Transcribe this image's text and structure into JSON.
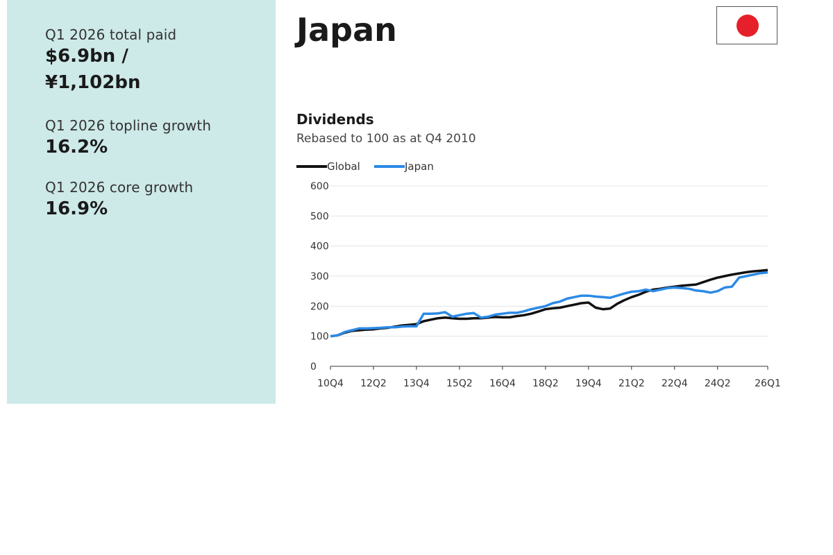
{
  "stats": [
    {
      "label": "Q1 2026 total paid",
      "value_line1": "$6.9bn /",
      "value_line2": "¥1,102bn"
    },
    {
      "label": "Q1 2026 topline growth",
      "value": "16.2%"
    },
    {
      "label": "Q1 2026 core growth",
      "value": "16.9%"
    }
  ],
  "country": "Japan",
  "flag_icon": "japan-flag-icon",
  "colors": {
    "panel": "#cde9e8",
    "global": "#111111",
    "japan": "#2b8ae6",
    "flag_red": "#e5202a"
  },
  "chart_data": {
    "type": "line",
    "title": "Dividends",
    "subtitle": "Rebased to 100 as at Q4 2010",
    "legend": [
      "Global",
      "Japan"
    ],
    "legend_position": "top-left",
    "ylim": [
      0,
      600
    ],
    "yticks": [
      0,
      100,
      200,
      300,
      400,
      500,
      600
    ],
    "xtick_labels": [
      "10Q4",
      "12Q2",
      "13Q4",
      "15Q2",
      "16Q4",
      "18Q2",
      "19Q4",
      "21Q2",
      "22Q4",
      "24Q2",
      "26Q1"
    ],
    "xtick_index": [
      0,
      6,
      12,
      18,
      24,
      30,
      36,
      42,
      48,
      54,
      61
    ],
    "grid": true,
    "x": [
      "10Q4",
      "11Q1",
      "11Q2",
      "11Q3",
      "11Q4",
      "12Q1",
      "12Q2",
      "12Q3",
      "12Q4",
      "13Q1",
      "13Q2",
      "13Q3",
      "13Q4",
      "14Q1",
      "14Q2",
      "14Q3",
      "14Q4",
      "15Q1",
      "15Q2",
      "15Q3",
      "15Q4",
      "16Q1",
      "16Q2",
      "16Q3",
      "16Q4",
      "17Q1",
      "17Q2",
      "17Q3",
      "17Q4",
      "18Q1",
      "18Q2",
      "18Q3",
      "18Q4",
      "19Q1",
      "19Q2",
      "19Q3",
      "19Q4",
      "20Q1",
      "20Q2",
      "20Q3",
      "20Q4",
      "21Q1",
      "21Q2",
      "21Q3",
      "21Q4",
      "22Q1",
      "22Q2",
      "22Q3",
      "22Q4",
      "23Q1",
      "23Q2",
      "23Q3",
      "23Q4",
      "24Q1",
      "24Q2",
      "24Q3",
      "24Q4",
      "25Q1",
      "25Q2",
      "25Q3",
      "25Q4",
      "26Q1"
    ],
    "series": [
      {
        "name": "Global",
        "values": [
          100,
          103,
          112,
          118,
          120,
          122,
          123,
          126,
          128,
          132,
          136,
          138,
          140,
          150,
          155,
          160,
          162,
          160,
          158,
          158,
          160,
          160,
          162,
          164,
          163,
          163,
          167,
          170,
          175,
          182,
          190,
          193,
          195,
          200,
          205,
          210,
          212,
          195,
          190,
          192,
          208,
          220,
          230,
          238,
          248,
          255,
          258,
          262,
          265,
          268,
          270,
          272,
          280,
          288,
          295,
          300,
          305,
          309,
          313,
          316,
          318,
          320
        ]
      },
      {
        "name": "Japan",
        "values": [
          100,
          103,
          114,
          120,
          126,
          126,
          127,
          128,
          130,
          130,
          132,
          133,
          133,
          175,
          175,
          176,
          180,
          165,
          170,
          175,
          177,
          162,
          165,
          172,
          175,
          178,
          178,
          183,
          190,
          195,
          200,
          210,
          215,
          225,
          230,
          235,
          235,
          232,
          230,
          228,
          235,
          242,
          248,
          250,
          255,
          250,
          255,
          260,
          262,
          260,
          258,
          252,
          250,
          245,
          250,
          262,
          265,
          295,
          300,
          305,
          310,
          312
        ]
      }
    ]
  }
}
